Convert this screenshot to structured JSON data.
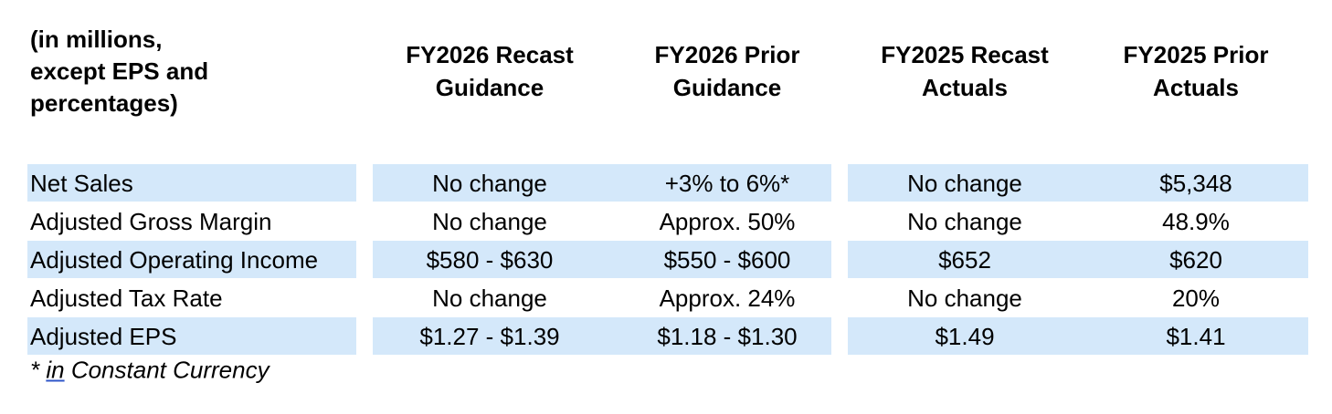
{
  "table": {
    "corner": [
      "(in millions,",
      "except EPS and",
      "percentages)"
    ],
    "columns": [
      [
        "FY2026 Recast",
        "Guidance"
      ],
      [
        "FY2026 Prior",
        "Guidance"
      ],
      [
        "FY2025 Recast",
        "Actuals"
      ],
      [
        "FY2025 Prior",
        "Actuals"
      ]
    ],
    "rows": [
      [
        "Net Sales",
        "No change",
        "+3% to 6%*",
        "No change",
        "$5,348"
      ],
      [
        "Adjusted Gross Margin",
        "No change",
        "Approx. 50%",
        "No change",
        "48.9%"
      ],
      [
        "Adjusted Operating Income",
        "$580 - $630",
        "$550 - $600",
        "$652",
        "$620"
      ],
      [
        "Adjusted Tax Rate",
        "No change",
        "Approx. 24%",
        "No change",
        "20%"
      ],
      [
        "Adjusted EPS",
        "$1.27 - $1.39",
        "$1.18 - $1.30",
        "$1.49",
        "$1.41"
      ]
    ]
  },
  "footnote": {
    "prefix": "* ",
    "link": "in",
    "text": " Constant Currency"
  }
}
